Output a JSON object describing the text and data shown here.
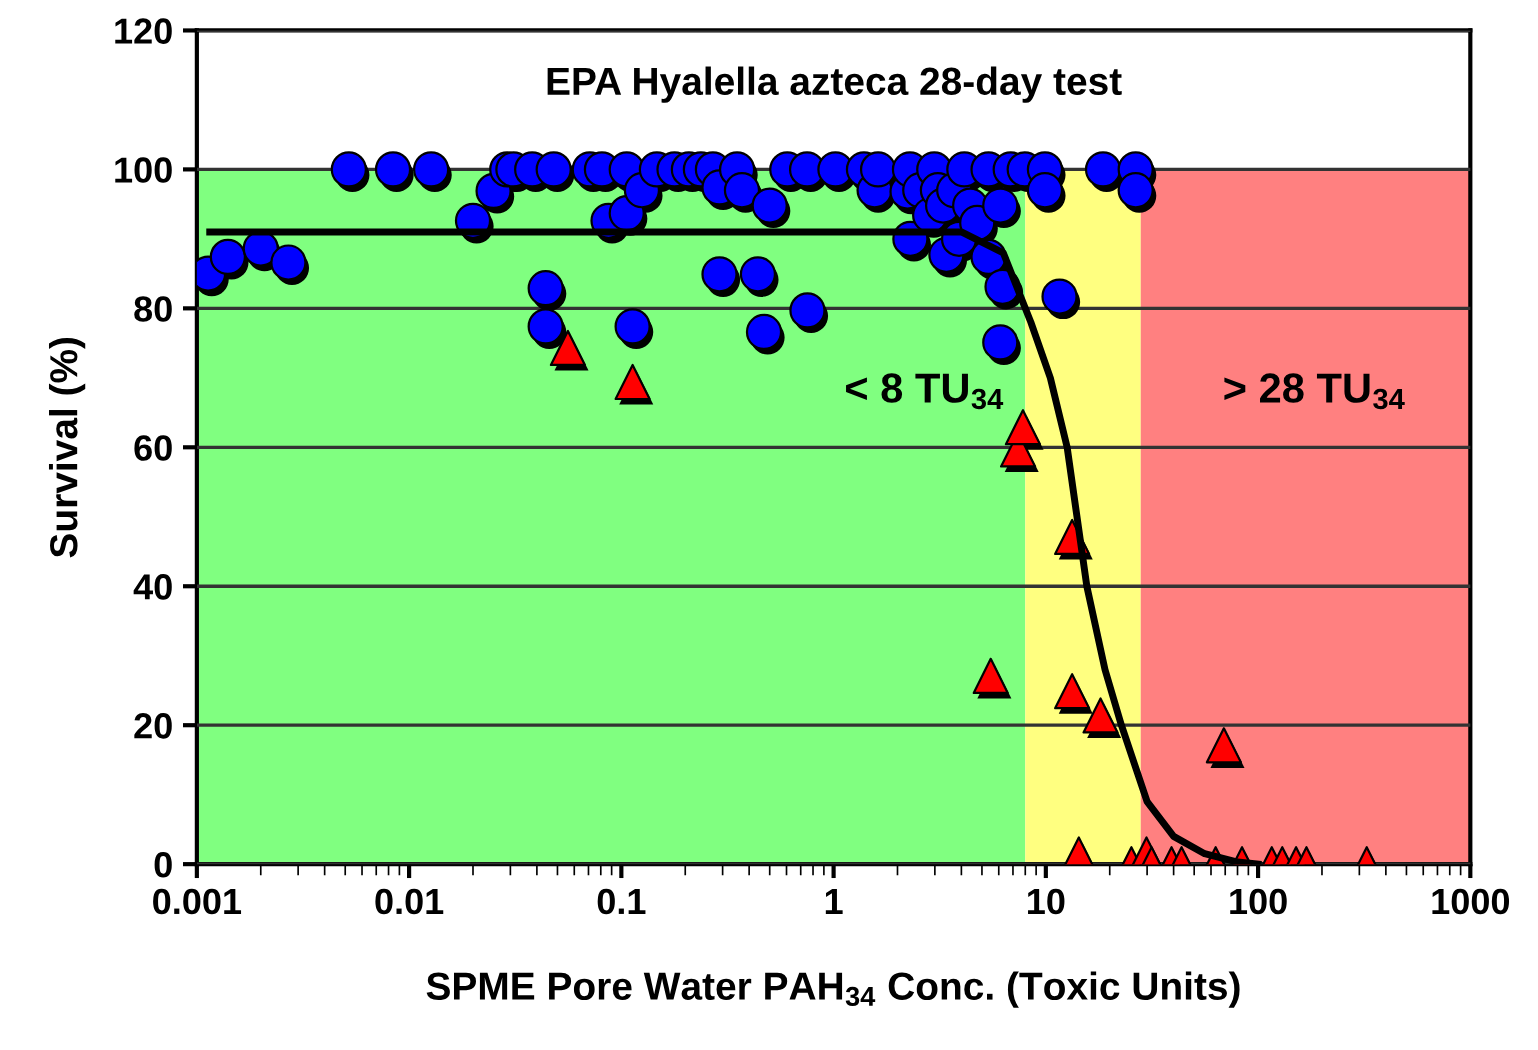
{
  "chart_data": {
    "type": "scatter",
    "title": "EPA Hyalella azteca 28-day test",
    "xlabel": "SPME Pore Water PAH$_{34}$ Conc. (Toxic Units)",
    "ylabel": "Survival (%)",
    "log": "x",
    "xlim": [
      0.001,
      1000
    ],
    "xticks": [
      0.001,
      0.01,
      0.1,
      1,
      10,
      100,
      1000
    ],
    "ylim": [
      0,
      120
    ],
    "yticks": [
      0,
      20,
      40,
      60,
      80,
      100,
      120
    ],
    "grid": "y",
    "legend": false,
    "bands": [
      {
        "axis": "x",
        "from": 0.001,
        "to": 8,
        "label": "< 8 TU$_{34}$",
        "color": "#80ff80"
      },
      {
        "axis": "x",
        "from": 8,
        "to": 28,
        "color": "#ffff80"
      },
      {
        "axis": "x",
        "from": 28,
        "to": 1000,
        "label": "> 28 TU$_{34}$",
        "color": "#ff8080"
      }
    ],
    "series": [
      {
        "marker": "circle",
        "color": "#0000ff",
        "x": [
          0.00113,
          0.0014,
          0.002,
          0.0027,
          0.0052,
          0.0084,
          0.0127,
          0.02,
          0.025,
          0.029,
          0.031,
          0.038,
          0.044,
          0.044,
          0.048,
          0.071,
          0.081,
          0.087,
          0.106,
          0.106,
          0.113,
          0.125,
          0.147,
          0.178,
          0.208,
          0.237,
          0.27,
          0.29,
          0.29,
          0.351,
          0.37,
          0.44,
          0.47,
          0.5,
          0.605,
          0.75,
          0.753,
          1.02,
          1.39,
          1.56,
          1.62,
          2.23,
          2.29,
          2.3,
          2.56,
          2.85,
          2.98,
          3.1,
          3.28,
          3.4,
          3.7,
          3.9,
          4.13,
          4.4,
          4.75,
          5.37,
          5.37,
          6.1,
          6.1,
          6.25,
          6.83,
          7.95,
          9.9,
          9.9,
          11.6,
          18.6,
          26.5,
          26.5
        ],
        "values": [
          85,
          87.4,
          88.6,
          86.6,
          100,
          100,
          100,
          92.6,
          96.9,
          100,
          100,
          100,
          82.9,
          77.4,
          100,
          100,
          100,
          92.6,
          100,
          93.7,
          77.4,
          97,
          100,
          100,
          100,
          100,
          100,
          97.4,
          84.9,
          100,
          97,
          84.9,
          76.6,
          94.8,
          100,
          100,
          79.7,
          100,
          100,
          97,
          100,
          96.8,
          100,
          90,
          97,
          93.4,
          100,
          97,
          94.8,
          87.7,
          97,
          90,
          100,
          94.8,
          92.3,
          100,
          87.4,
          94.8,
          75.1,
          83.1,
          100,
          100,
          100,
          97,
          81.7,
          100,
          100,
          97
        ]
      },
      {
        "marker": "triangle",
        "color": "#ff0000",
        "x": [
          0.056,
          0.113,
          5.5,
          7.4,
          7.8,
          13.3,
          13.3,
          14.3,
          18.1,
          25.3,
          29.8,
          31.5,
          39.1,
          43.6,
          63.1,
          69,
          84,
          116,
          130,
          151,
          169,
          325
        ],
        "values": [
          74.3,
          69.4,
          27.1,
          59.7,
          62.9,
          47.1,
          24.9,
          1.4,
          21.4,
          0,
          1.4,
          0,
          0,
          0,
          0,
          17.1,
          0,
          0,
          0,
          0,
          0,
          0
        ]
      },
      {
        "type": "line",
        "marker": "none",
        "color": "#000000",
        "x": [
          0.00115,
          4,
          6.3,
          8.5,
          10.5,
          12.6,
          15.6,
          19,
          22.7,
          30,
          40,
          56,
          80,
          100
        ],
        "values": [
          91,
          91,
          88,
          78,
          70,
          60,
          40,
          28,
          20,
          9,
          4,
          1.5,
          0.3,
          0
        ]
      }
    ]
  }
}
